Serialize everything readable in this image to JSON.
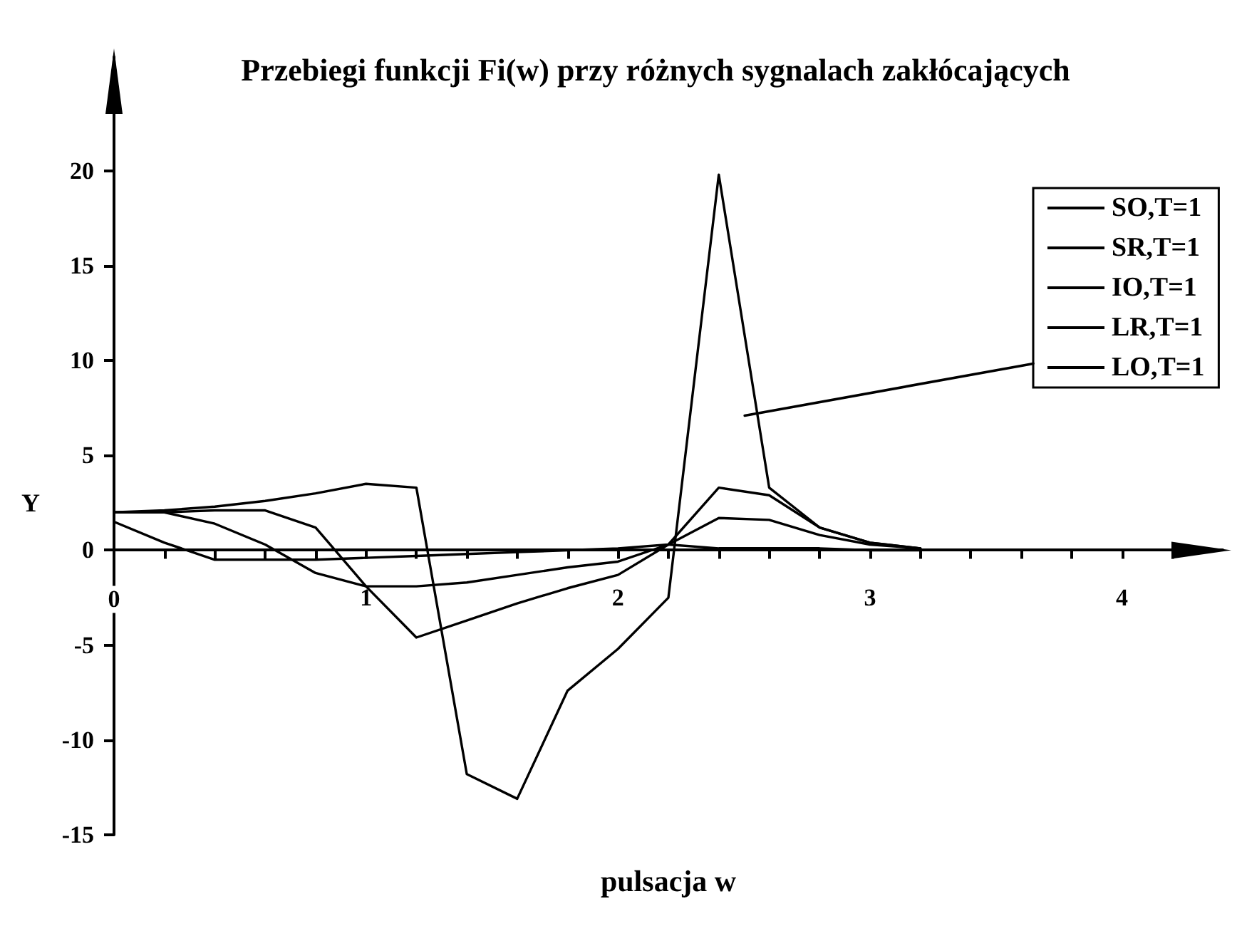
{
  "chart_data": {
    "type": "line",
    "title": "Przebiegi funkcji Fi(w) przy różnych sygnalach zakłócających",
    "xlabel": "pulsacja w",
    "ylabel": "Y",
    "x": [
      0,
      0.2,
      0.4,
      0.6,
      0.8,
      1,
      1.2,
      1.4,
      1.6,
      1.8,
      2,
      2.2,
      2.4,
      2.6,
      2.8,
      3,
      3.2
    ],
    "series": [
      {
        "name": "SO,T=1",
        "color": "#000000",
        "values": [
          2.0,
          2.1,
          2.3,
          2.6,
          3.0,
          3.5,
          3.3,
          -11.8,
          -13.1,
          -7.4,
          -5.2,
          -2.5,
          19.8,
          3.3,
          1.2,
          0.4,
          0.1
        ]
      },
      {
        "name": "SR,T=1",
        "color": "#000000",
        "values": [
          2.0,
          2.0,
          2.1,
          2.1,
          1.2,
          -1.9,
          -4.6,
          -3.7,
          -2.8,
          -2.0,
          -1.3,
          0.3,
          3.3,
          2.9,
          1.2,
          0.4,
          0.1
        ]
      },
      {
        "name": "IO,T=1",
        "color": "#000000",
        "values": [
          2.0,
          2.0,
          1.4,
          0.3,
          -1.2,
          -1.9,
          -1.9,
          -1.7,
          -1.3,
          -0.9,
          -0.6,
          0.3,
          0.1,
          0.1,
          0.1,
          0.0,
          0.0
        ]
      },
      {
        "name": "LR,T=1",
        "color": "#000000",
        "values": [
          1.5,
          0.4,
          -0.5,
          -0.5,
          -0.5,
          -0.4,
          -0.3,
          -0.2,
          -0.1,
          0.0,
          0.1,
          0.3,
          1.7,
          1.6,
          0.8,
          0.3,
          0.1
        ]
      },
      {
        "name": "LO,T=1",
        "color": "#000000",
        "values": [
          null,
          null,
          null,
          null,
          null,
          null,
          null,
          null,
          null,
          null,
          null,
          null,
          null,
          null,
          null,
          null,
          null
        ]
      }
    ],
    "xlim": [
      0,
      4.4
    ],
    "xticks": [
      0,
      {
        "value": 0.2,
        "label": null
      },
      {
        "value": 0.4,
        "label": null
      },
      {
        "value": 0.6,
        "label": null
      },
      {
        "value": 0.8,
        "label": null
      },
      1,
      {
        "value": 1.2,
        "label": null
      },
      {
        "value": 1.4,
        "label": null
      },
      {
        "value": 1.6,
        "label": null
      },
      {
        "value": 1.8,
        "label": null
      },
      2,
      {
        "value": 2.2,
        "label": null
      },
      {
        "value": 2.4,
        "label": null
      },
      {
        "value": 2.6,
        "label": null
      },
      {
        "value": 2.8,
        "label": null
      },
      3,
      {
        "value": 3.2,
        "label": null
      },
      {
        "value": 3.4,
        "label": null
      },
      {
        "value": 3.6,
        "label": null
      },
      {
        "value": 3.8,
        "label": null
      },
      4,
      {
        "value": 4.2,
        "label": null
      }
    ],
    "ylim": [
      -15,
      26
    ],
    "yticks": [
      -15,
      -10,
      -5,
      0,
      5,
      10,
      15,
      20
    ],
    "grid": false,
    "legend": "top right",
    "marker": "none",
    "line_style": "solid"
  }
}
